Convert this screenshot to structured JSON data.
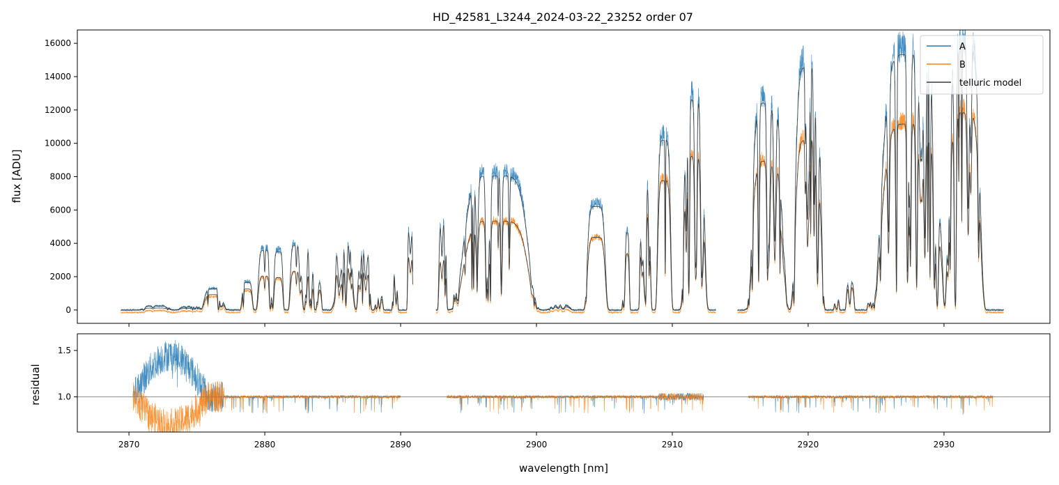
{
  "chart_data": [
    {
      "type": "line",
      "title": "HD_42581_L3244_2024-03-22_23252  order 07",
      "xlabel": "",
      "ylabel": "flux [ADU]",
      "xlim": [
        2866.2,
        2937.8
      ],
      "ylim": [
        -800,
        16800
      ],
      "xticks": [
        2870,
        2880,
        2890,
        2900,
        2910,
        2920,
        2930
      ],
      "yticks": [
        0,
        2000,
        4000,
        6000,
        8000,
        10000,
        12000,
        14000,
        16000
      ],
      "ytick_labels": [
        "0",
        "2000",
        "4000",
        "6000",
        "8000",
        "10000",
        "12000",
        "14000",
        "16000"
      ],
      "legend": {
        "position": "top-right",
        "entries": [
          "A",
          "B",
          "telluric model"
        ]
      },
      "series": [
        {
          "name": "A",
          "color": "#1f77b4",
          "segments": [
            [
              2869.4,
              2890.9
            ],
            [
              2892.6,
              2913.2
            ],
            [
              2914.8,
              2934.4
            ]
          ]
        },
        {
          "name": "B",
          "color": "#ff7f0e",
          "segments": [
            [
              2869.4,
              2890.9
            ],
            [
              2892.6,
              2913.2
            ],
            [
              2914.8,
              2934.4
            ]
          ]
        },
        {
          "name": "telluric model",
          "color": "#3a3a3a",
          "segments": [
            [
              2869.4,
              2890.9
            ],
            [
              2892.6,
              2913.2
            ],
            [
              2914.8,
              2934.4
            ]
          ]
        }
      ],
      "windows": [
        {
          "center": 2872.0,
          "width": 2.0,
          "peakA": 250,
          "peakB": 120
        },
        {
          "center": 2874.5,
          "width": 1.6,
          "peakA": 200,
          "peakB": 100
        },
        {
          "center": 2876.3,
          "width": 1.6,
          "peakA": 1300,
          "peakB": 950
        },
        {
          "center": 2878.7,
          "width": 0.8,
          "peakA": 1700,
          "peakB": 1300
        },
        {
          "center": 2880.0,
          "width": 1.0,
          "peakA": 3700,
          "peakB": 2100
        },
        {
          "center": 2881.0,
          "width": 0.7,
          "peakA": 3600,
          "peakB": 2000
        },
        {
          "center": 2882.3,
          "width": 0.9,
          "peakA": 4000,
          "peakB": 2400
        },
        {
          "center": 2883.3,
          "width": 0.6,
          "peakA": 3800,
          "peakB": 2200
        },
        {
          "center": 2884.0,
          "width": 0.4,
          "peakA": 1900,
          "peakB": 1400
        },
        {
          "center": 2885.8,
          "width": 1.4,
          "peakA": 4200,
          "peakB": 2700
        },
        {
          "center": 2887.3,
          "width": 0.9,
          "peakA": 3800,
          "peakB": 2500
        },
        {
          "center": 2888.4,
          "width": 0.6,
          "peakA": 1000,
          "peakB": 800
        },
        {
          "center": 2889.6,
          "width": 0.4,
          "peakA": 2500,
          "peakB": 2200
        },
        {
          "center": 2890.7,
          "width": 0.4,
          "peakA": 5200,
          "peakB": 3500
        },
        {
          "center": 2893.1,
          "width": 0.6,
          "peakA": 5500,
          "peakB": 3200
        },
        {
          "center": 2894.0,
          "width": 0.3,
          "peakA": 2000,
          "peakB": 1600
        },
        {
          "center": 2897.0,
          "width": 5.0,
          "peakA": 8300,
          "peakB": 5500
        },
        {
          "center": 2901.7,
          "width": 1.6,
          "peakA": 300,
          "peakB": 200
        },
        {
          "center": 2904.4,
          "width": 1.4,
          "peakA": 6400,
          "peakB": 4500
        },
        {
          "center": 2906.6,
          "width": 0.5,
          "peakA": 4800,
          "peakB": 3500
        },
        {
          "center": 2908.0,
          "width": 0.8,
          "peakA": 7800,
          "peakB": 6000
        },
        {
          "center": 2909.4,
          "width": 1.0,
          "peakA": 10500,
          "peakB": 8000
        },
        {
          "center": 2911.6,
          "width": 1.6,
          "peakA": 13000,
          "peakB": 9500
        },
        {
          "center": 2917.0,
          "width": 2.4,
          "peakA": 12800,
          "peakB": 9200
        },
        {
          "center": 2920.0,
          "width": 2.0,
          "peakA": 15000,
          "peakB": 10500
        },
        {
          "center": 2922.1,
          "width": 0.4,
          "peakA": 700,
          "peakB": 600
        },
        {
          "center": 2923.1,
          "width": 0.6,
          "peakA": 1700,
          "peakB": 1400
        },
        {
          "center": 2924.5,
          "width": 0.3,
          "peakA": 500,
          "peakB": 500
        },
        {
          "center": 2927.5,
          "width": 4.4,
          "peakA": 15800,
          "peakB": 11500
        },
        {
          "center": 2931.5,
          "width": 2.4,
          "peakA": 16400,
          "peakB": 12200
        }
      ]
    },
    {
      "type": "line",
      "title": "",
      "xlabel": "wavelength [nm]",
      "ylabel": "residual",
      "xlim": [
        2866.2,
        2937.8
      ],
      "ylim": [
        0.62,
        1.68
      ],
      "xticks": [
        2870,
        2880,
        2890,
        2900,
        2910,
        2920,
        2930
      ],
      "xtick_labels": [
        "2870",
        "2880",
        "2890",
        "2900",
        "2910",
        "2920",
        "2930"
      ],
      "yticks": [
        1.0,
        1.5
      ],
      "ytick_labels": [
        "1.0",
        "1.5"
      ],
      "reference_line": 1.0,
      "series": [
        {
          "name": "A",
          "color": "#1f77b4",
          "segments": [
            [
              2870.3,
              2890.0
            ],
            [
              2893.4,
              2912.3
            ],
            [
              2915.6,
              2933.6
            ]
          ]
        },
        {
          "name": "B",
          "color": "#ff7f0e",
          "segments": [
            [
              2870.3,
              2890.0
            ],
            [
              2893.4,
              2912.3
            ],
            [
              2915.6,
              2933.6
            ]
          ]
        }
      ]
    }
  ]
}
